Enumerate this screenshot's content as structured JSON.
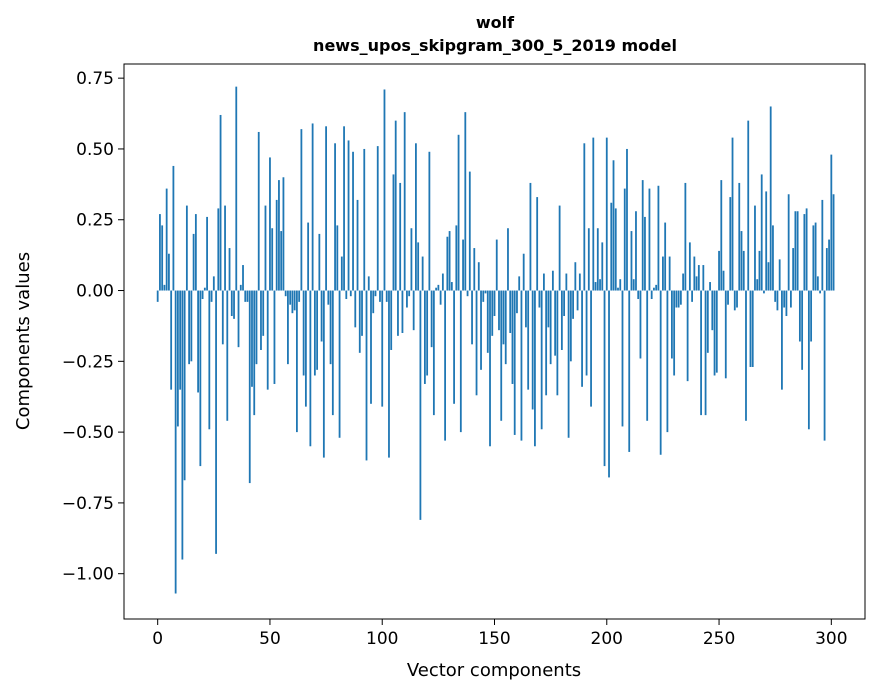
{
  "chart_data": {
    "type": "bar",
    "title": "wolf",
    "subtitle": "news_upos_skipgram_300_5_2019 model",
    "xlabel": "Vector components",
    "ylabel": "Components values",
    "xlim": [
      -15,
      315
    ],
    "ylim": [
      -1.16,
      0.8
    ],
    "xticks": [
      0,
      50,
      100,
      150,
      200,
      250,
      300
    ],
    "yticks": [
      -1.0,
      -0.75,
      -0.5,
      -0.25,
      0.0,
      0.25,
      0.5,
      0.75
    ],
    "ytick_labels": [
      "−1.00",
      "−0.75",
      "−0.50",
      "−0.25",
      "0.00",
      "0.25",
      "0.50",
      "0.75"
    ],
    "grid": false,
    "bar_color": "#1f77b4",
    "x_start": 0,
    "values": [
      -0.04,
      0.27,
      0.23,
      0.02,
      0.36,
      0.13,
      -0.35,
      0.44,
      -1.07,
      -0.48,
      -0.35,
      -0.95,
      -0.67,
      0.3,
      -0.26,
      -0.25,
      0.2,
      0.27,
      -0.36,
      -0.62,
      -0.03,
      0.01,
      0.26,
      -0.49,
      -0.04,
      0.05,
      -0.93,
      0.29,
      0.62,
      -0.19,
      0.3,
      -0.46,
      0.15,
      -0.09,
      -0.1,
      0.72,
      -0.2,
      0.02,
      0.09,
      -0.04,
      -0.04,
      -0.68,
      -0.34,
      -0.44,
      -0.26,
      0.56,
      -0.21,
      -0.16,
      0.3,
      -0.35,
      0.47,
      0.22,
      -0.33,
      0.32,
      0.39,
      0.21,
      0.4,
      -0.02,
      -0.26,
      -0.05,
      -0.08,
      -0.07,
      -0.5,
      -0.04,
      0.57,
      -0.3,
      -0.41,
      0.24,
      -0.55,
      0.59,
      -0.3,
      -0.28,
      0.2,
      -0.18,
      -0.59,
      0.58,
      -0.05,
      -0.26,
      -0.44,
      0.52,
      0.23,
      -0.52,
      0.12,
      0.58,
      -0.03,
      0.53,
      -0.02,
      0.49,
      -0.13,
      0.32,
      -0.22,
      -0.16,
      0.5,
      -0.6,
      0.05,
      -0.4,
      -0.08,
      -0.02,
      0.51,
      -0.04,
      -0.41,
      0.71,
      -0.04,
      -0.59,
      -0.21,
      0.41,
      0.6,
      -0.16,
      0.38,
      -0.15,
      0.63,
      -0.06,
      -0.02,
      0.22,
      -0.14,
      0.52,
      0.17,
      -0.81,
      0.12,
      -0.33,
      -0.3,
      0.49,
      -0.2,
      -0.44,
      0.01,
      0.02,
      -0.05,
      0.06,
      -0.53,
      0.19,
      0.21,
      0.03,
      -0.4,
      0.23,
      0.55,
      -0.5,
      0.18,
      0.63,
      -0.02,
      0.42,
      -0.19,
      0.15,
      -0.37,
      0.1,
      -0.28,
      -0.04,
      -0.01,
      -0.22,
      -0.55,
      -0.16,
      -0.09,
      0.18,
      -0.14,
      -0.46,
      -0.19,
      -0.26,
      0.22,
      -0.15,
      -0.33,
      -0.51,
      -0.08,
      0.05,
      -0.53,
      0.13,
      -0.13,
      -0.35,
      0.38,
      -0.42,
      -0.55,
      0.33,
      -0.06,
      -0.49,
      0.06,
      -0.37,
      -0.13,
      -0.26,
      0.07,
      -0.23,
      -0.37,
      0.3,
      -0.21,
      -0.09,
      0.06,
      -0.52,
      -0.25,
      -0.1,
      0.1,
      -0.07,
      0.06,
      -0.34,
      0.52,
      -0.3,
      0.22,
      -0.41,
      0.54,
      0.03,
      0.22,
      0.04,
      0.17,
      -0.62,
      0.54,
      -0.66,
      0.31,
      0.46,
      0.29,
      0.01,
      0.04,
      -0.48,
      0.36,
      0.5,
      -0.57,
      0.21,
      0.04,
      0.28,
      -0.03,
      -0.24,
      0.39,
      0.26,
      -0.46,
      0.36,
      -0.03,
      0.01,
      0.02,
      0.37,
      -0.58,
      0.12,
      0.24,
      -0.5,
      0.12,
      -0.24,
      -0.3,
      -0.06,
      -0.06,
      -0.05,
      0.06,
      0.38,
      -0.32,
      0.17,
      -0.04,
      0.12,
      0.05,
      0.09,
      -0.44,
      0.09,
      -0.44,
      -0.22,
      0.03,
      -0.14,
      -0.3,
      -0.29,
      0.14,
      0.39,
      0.07,
      -0.31,
      -0.05,
      0.33,
      0.54,
      -0.07,
      -0.06,
      0.38,
      0.21,
      0.14,
      -0.46,
      0.6,
      -0.27,
      -0.27,
      0.3,
      0.04,
      0.14,
      0.41,
      -0.01,
      0.35,
      0.1,
      0.65,
      0.23,
      -0.04,
      -0.07,
      0.11,
      -0.35,
      -0.06,
      -0.09,
      0.34,
      -0.06,
      0.15,
      0.28,
      0.28,
      -0.18,
      -0.28,
      0.27,
      0.29,
      -0.49,
      -0.18,
      0.23,
      0.24,
      0.05,
      -0.01,
      0.32,
      -0.53,
      0.15,
      0.18,
      0.48,
      0.34
    ]
  }
}
